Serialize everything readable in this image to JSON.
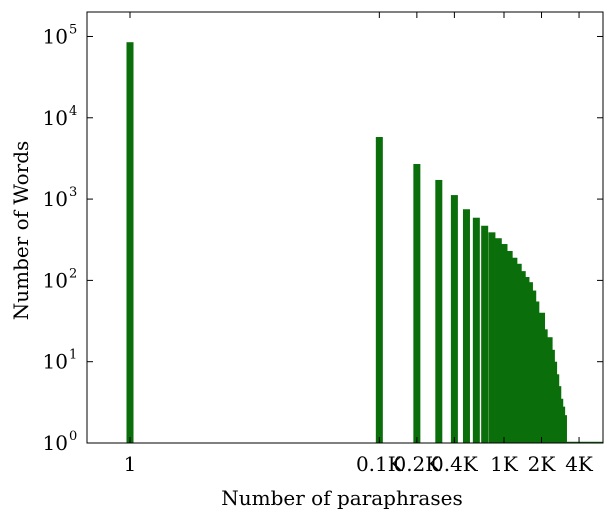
{
  "chart_data": {
    "type": "bar",
    "title": "",
    "xlabel": "Number of paraphrases",
    "ylabel": "Number of Words",
    "x_scale": "log",
    "y_scale": "log",
    "xlim": [
      1,
      6000
    ],
    "ylim": [
      1,
      200000
    ],
    "grid": false,
    "legend": "none",
    "bar_color": "#0a6e0a",
    "x_ticks": [
      {
        "value": 1,
        "label": "1"
      },
      {
        "value": 100,
        "label": "0.1K"
      },
      {
        "value": 200,
        "label": "0.2K"
      },
      {
        "value": 400,
        "label": "0.4K"
      },
      {
        "value": 1000,
        "label": "1K"
      },
      {
        "value": 2000,
        "label": "2K"
      },
      {
        "value": 4000,
        "label": "4K"
      }
    ],
    "y_ticks": [
      {
        "value": 1,
        "base": "10",
        "exp": "0"
      },
      {
        "value": 10,
        "base": "10",
        "exp": "1"
      },
      {
        "value": 100,
        "base": "10",
        "exp": "2"
      },
      {
        "value": 1000,
        "base": "10",
        "exp": "3"
      },
      {
        "value": 10000,
        "base": "10",
        "exp": "4"
      },
      {
        "value": 100000,
        "base": "10",
        "exp": "5"
      }
    ],
    "bars": [
      {
        "x": 1,
        "y": 85000
      },
      {
        "x": 100,
        "y": 5800
      },
      {
        "x": 200,
        "y": 2700
      },
      {
        "x": 300,
        "y": 1720
      },
      {
        "x": 400,
        "y": 1120
      },
      {
        "x": 500,
        "y": 750
      },
      {
        "x": 600,
        "y": 590
      },
      {
        "x": 700,
        "y": 470
      },
      {
        "x": 800,
        "y": 390
      },
      {
        "x": 900,
        "y": 330
      },
      {
        "x": 1000,
        "y": 280
      },
      {
        "x": 1100,
        "y": 230
      },
      {
        "x": 1200,
        "y": 190
      },
      {
        "x": 1300,
        "y": 160
      },
      {
        "x": 1400,
        "y": 130
      },
      {
        "x": 1500,
        "y": 110
      },
      {
        "x": 1600,
        "y": 95
      },
      {
        "x": 1700,
        "y": 75
      },
      {
        "x": 1800,
        "y": 55
      },
      {
        "x": 1900,
        "y": 35
      },
      {
        "x": 2000,
        "y": 40
      },
      {
        "x": 2100,
        "y": 25
      },
      {
        "x": 2200,
        "y": 18
      },
      {
        "x": 2300,
        "y": 20
      },
      {
        "x": 2400,
        "y": 14
      },
      {
        "x": 2500,
        "y": 10
      },
      {
        "x": 2600,
        "y": 7
      },
      {
        "x": 2700,
        "y": 5
      },
      {
        "x": 2800,
        "y": 3.5
      },
      {
        "x": 2900,
        "y": 2.8
      },
      {
        "x": 3000,
        "y": 2.2
      }
    ]
  }
}
